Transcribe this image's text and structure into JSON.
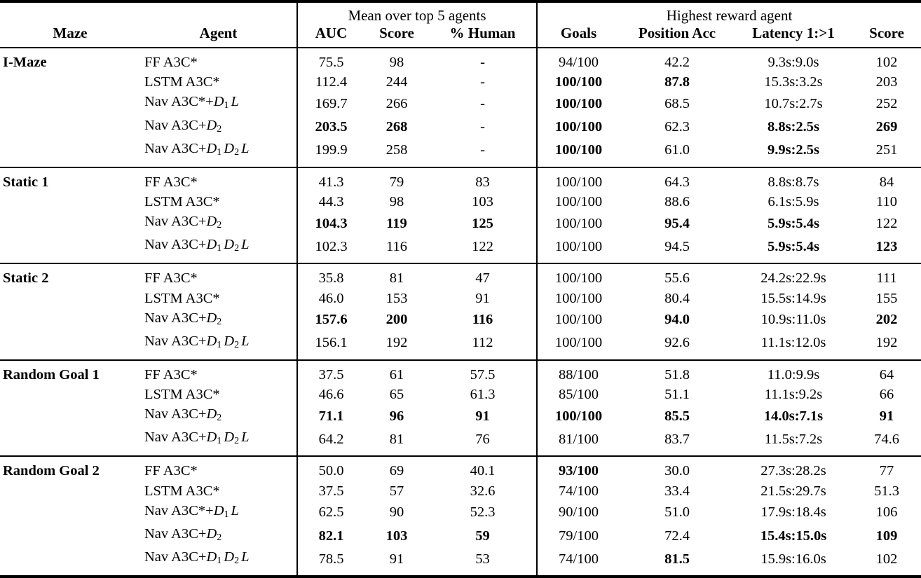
{
  "colors": {
    "text": "#000000",
    "background": "#ffffff",
    "rule": "#000000"
  },
  "table": {
    "group_headers": [
      {
        "label": "",
        "span": 2
      },
      {
        "label": "Mean over top 5 agents",
        "span": 3
      },
      {
        "label": "Highest reward agent",
        "span": 4
      }
    ],
    "columns": [
      "Maze",
      "Agent",
      "AUC",
      "Score",
      "% Human",
      "Goals",
      "Position Acc",
      "Latency 1:>1",
      "Score"
    ],
    "sections": [
      {
        "maze": "I-Maze",
        "rows": [
          {
            "agent": [
              [
                "r",
                "FF A3C*"
              ]
            ],
            "cells": [
              {
                "v": "75.5"
              },
              {
                "v": "98"
              },
              {
                "v": "-"
              },
              {
                "v": "94/100"
              },
              {
                "v": "42.2"
              },
              {
                "v": "9.3s:9.0s"
              },
              {
                "v": "102"
              }
            ]
          },
          {
            "agent": [
              [
                "r",
                "LSTM A3C*"
              ]
            ],
            "cells": [
              {
                "v": "112.4"
              },
              {
                "v": "244"
              },
              {
                "v": "-"
              },
              {
                "v": "100/100",
                "b": true
              },
              {
                "v": "87.8",
                "b": true
              },
              {
                "v": "15.3s:3.2s"
              },
              {
                "v": "203"
              }
            ]
          },
          {
            "agent": [
              [
                "r",
                "Nav A3C*+"
              ],
              [
                "i",
                "D"
              ],
              [
                "s",
                "1"
              ],
              [
                "i",
                "L"
              ]
            ],
            "cells": [
              {
                "v": "169.7"
              },
              {
                "v": "266"
              },
              {
                "v": "-"
              },
              {
                "v": "100/100",
                "b": true
              },
              {
                "v": "68.5"
              },
              {
                "v": "10.7s:2.7s"
              },
              {
                "v": "252"
              }
            ]
          },
          {
            "agent": [
              [
                "r",
                "Nav A3C+"
              ],
              [
                "i",
                "D"
              ],
              [
                "s",
                "2"
              ]
            ],
            "cells": [
              {
                "v": "203.5",
                "b": true
              },
              {
                "v": "268",
                "b": true
              },
              {
                "v": "-"
              },
              {
                "v": "100/100",
                "b": true
              },
              {
                "v": "62.3"
              },
              {
                "v": "8.8s:2.5s",
                "b": true
              },
              {
                "v": "269",
                "b": true
              }
            ]
          },
          {
            "agent": [
              [
                "r",
                "Nav A3C+"
              ],
              [
                "i",
                "D"
              ],
              [
                "s",
                "1"
              ],
              [
                "i",
                "D"
              ],
              [
                "s",
                "2"
              ],
              [
                "i",
                "L"
              ]
            ],
            "cells": [
              {
                "v": "199.9"
              },
              {
                "v": "258"
              },
              {
                "v": "-"
              },
              {
                "v": "100/100",
                "b": true
              },
              {
                "v": "61.0"
              },
              {
                "v": "9.9s:2.5s",
                "b": true
              },
              {
                "v": "251"
              }
            ]
          }
        ]
      },
      {
        "maze": "Static 1",
        "rows": [
          {
            "agent": [
              [
                "r",
                "FF A3C*"
              ]
            ],
            "cells": [
              {
                "v": "41.3"
              },
              {
                "v": "79"
              },
              {
                "v": "83"
              },
              {
                "v": "100/100"
              },
              {
                "v": "64.3"
              },
              {
                "v": "8.8s:8.7s"
              },
              {
                "v": "84"
              }
            ]
          },
          {
            "agent": [
              [
                "r",
                "LSTM A3C*"
              ]
            ],
            "cells": [
              {
                "v": "44.3"
              },
              {
                "v": "98"
              },
              {
                "v": "103"
              },
              {
                "v": "100/100"
              },
              {
                "v": "88.6"
              },
              {
                "v": "6.1s:5.9s"
              },
              {
                "v": "110"
              }
            ]
          },
          {
            "agent": [
              [
                "r",
                "Nav A3C+"
              ],
              [
                "i",
                "D"
              ],
              [
                "s",
                "2"
              ]
            ],
            "cells": [
              {
                "v": "104.3",
                "b": true
              },
              {
                "v": "119",
                "b": true
              },
              {
                "v": "125",
                "b": true
              },
              {
                "v": "100/100"
              },
              {
                "v": "95.4",
                "b": true
              },
              {
                "v": "5.9s:5.4s",
                "b": true
              },
              {
                "v": "122"
              }
            ]
          },
          {
            "agent": [
              [
                "r",
                "Nav A3C+"
              ],
              [
                "i",
                "D"
              ],
              [
                "s",
                "1"
              ],
              [
                "i",
                "D"
              ],
              [
                "s",
                "2"
              ],
              [
                "i",
                "L"
              ]
            ],
            "cells": [
              {
                "v": "102.3"
              },
              {
                "v": "116"
              },
              {
                "v": "122"
              },
              {
                "v": "100/100"
              },
              {
                "v": "94.5"
              },
              {
                "v": "5.9s:5.4s",
                "b": true
              },
              {
                "v": "123",
                "b": true
              }
            ]
          }
        ]
      },
      {
        "maze": "Static 2",
        "rows": [
          {
            "agent": [
              [
                "r",
                "FF A3C*"
              ]
            ],
            "cells": [
              {
                "v": "35.8"
              },
              {
                "v": "81"
              },
              {
                "v": "47"
              },
              {
                "v": "100/100"
              },
              {
                "v": "55.6"
              },
              {
                "v": "24.2s:22.9s"
              },
              {
                "v": "111"
              }
            ]
          },
          {
            "agent": [
              [
                "r",
                "LSTM A3C*"
              ]
            ],
            "cells": [
              {
                "v": "46.0"
              },
              {
                "v": "153"
              },
              {
                "v": "91"
              },
              {
                "v": "100/100"
              },
              {
                "v": "80.4"
              },
              {
                "v": "15.5s:14.9s"
              },
              {
                "v": "155"
              }
            ]
          },
          {
            "agent": [
              [
                "r",
                "Nav A3C+"
              ],
              [
                "i",
                "D"
              ],
              [
                "s",
                "2"
              ]
            ],
            "cells": [
              {
                "v": "157.6",
                "b": true
              },
              {
                "v": "200",
                "b": true
              },
              {
                "v": "116",
                "b": true
              },
              {
                "v": "100/100"
              },
              {
                "v": "94.0",
                "b": true
              },
              {
                "v": "10.9s:11.0s"
              },
              {
                "v": "202",
                "b": true
              }
            ]
          },
          {
            "agent": [
              [
                "r",
                "Nav A3C+"
              ],
              [
                "i",
                "D"
              ],
              [
                "s",
                "1"
              ],
              [
                "i",
                "D"
              ],
              [
                "s",
                "2"
              ],
              [
                "i",
                "L"
              ]
            ],
            "cells": [
              {
                "v": "156.1"
              },
              {
                "v": "192"
              },
              {
                "v": "112"
              },
              {
                "v": "100/100"
              },
              {
                "v": "92.6"
              },
              {
                "v": "11.1s:12.0s"
              },
              {
                "v": "192"
              }
            ]
          }
        ]
      },
      {
        "maze": "Random Goal 1",
        "rows": [
          {
            "agent": [
              [
                "r",
                "FF A3C*"
              ]
            ],
            "cells": [
              {
                "v": "37.5"
              },
              {
                "v": "61"
              },
              {
                "v": "57.5"
              },
              {
                "v": "88/100"
              },
              {
                "v": "51.8"
              },
              {
                "v": "11.0:9.9s"
              },
              {
                "v": "64"
              }
            ]
          },
          {
            "agent": [
              [
                "r",
                "LSTM A3C*"
              ]
            ],
            "cells": [
              {
                "v": "46.6"
              },
              {
                "v": "65"
              },
              {
                "v": "61.3"
              },
              {
                "v": "85/100"
              },
              {
                "v": "51.1"
              },
              {
                "v": "11.1s:9.2s"
              },
              {
                "v": "66"
              }
            ]
          },
          {
            "agent": [
              [
                "r",
                "Nav A3C+"
              ],
              [
                "i",
                "D"
              ],
              [
                "s",
                "2"
              ]
            ],
            "cells": [
              {
                "v": "71.1",
                "b": true
              },
              {
                "v": "96",
                "b": true
              },
              {
                "v": "91",
                "b": true
              },
              {
                "v": "100/100",
                "b": true
              },
              {
                "v": "85.5",
                "b": true
              },
              {
                "v": "14.0s:7.1s",
                "b": true
              },
              {
                "v": "91",
                "b": true
              }
            ]
          },
          {
            "agent": [
              [
                "r",
                "Nav A3C+"
              ],
              [
                "i",
                "D"
              ],
              [
                "s",
                "1"
              ],
              [
                "i",
                "D"
              ],
              [
                "s",
                "2"
              ],
              [
                "i",
                "L"
              ]
            ],
            "cells": [
              {
                "v": "64.2"
              },
              {
                "v": "81"
              },
              {
                "v": "76"
              },
              {
                "v": "81/100"
              },
              {
                "v": "83.7"
              },
              {
                "v": "11.5s:7.2s"
              },
              {
                "v": "74.6"
              }
            ]
          }
        ]
      },
      {
        "maze": "Random Goal 2",
        "rows": [
          {
            "agent": [
              [
                "r",
                "FF A3C*"
              ]
            ],
            "cells": [
              {
                "v": "50.0"
              },
              {
                "v": "69"
              },
              {
                "v": "40.1"
              },
              {
                "v": "93/100",
                "b": true
              },
              {
                "v": "30.0"
              },
              {
                "v": "27.3s:28.2s"
              },
              {
                "v": "77"
              }
            ]
          },
          {
            "agent": [
              [
                "r",
                "LSTM A3C*"
              ]
            ],
            "cells": [
              {
                "v": "37.5"
              },
              {
                "v": "57"
              },
              {
                "v": "32.6"
              },
              {
                "v": "74/100"
              },
              {
                "v": "33.4"
              },
              {
                "v": "21.5s:29.7s"
              },
              {
                "v": "51.3"
              }
            ]
          },
          {
            "agent": [
              [
                "r",
                "Nav A3C*+"
              ],
              [
                "i",
                "D"
              ],
              [
                "s",
                "1"
              ],
              [
                "i",
                "L"
              ]
            ],
            "cells": [
              {
                "v": "62.5"
              },
              {
                "v": "90"
              },
              {
                "v": "52.3"
              },
              {
                "v": "90/100"
              },
              {
                "v": "51.0"
              },
              {
                "v": "17.9s:18.4s"
              },
              {
                "v": "106"
              }
            ]
          },
          {
            "agent": [
              [
                "r",
                "Nav A3C+"
              ],
              [
                "i",
                "D"
              ],
              [
                "s",
                "2"
              ]
            ],
            "cells": [
              {
                "v": "82.1",
                "b": true
              },
              {
                "v": "103",
                "b": true
              },
              {
                "v": "59",
                "b": true
              },
              {
                "v": "79/100"
              },
              {
                "v": "72.4"
              },
              {
                "v": "15.4s:15.0s",
                "b": true
              },
              {
                "v": "109",
                "b": true
              }
            ]
          },
          {
            "agent": [
              [
                "r",
                "Nav A3C+"
              ],
              [
                "i",
                "D"
              ],
              [
                "s",
                "1"
              ],
              [
                "i",
                "D"
              ],
              [
                "s",
                "2"
              ],
              [
                "i",
                "L"
              ]
            ],
            "cells": [
              {
                "v": "78.5"
              },
              {
                "v": "91"
              },
              {
                "v": "53"
              },
              {
                "v": "74/100"
              },
              {
                "v": "81.5",
                "b": true
              },
              {
                "v": "15.9s:16.0s"
              },
              {
                "v": "102"
              }
            ]
          }
        ]
      }
    ]
  }
}
